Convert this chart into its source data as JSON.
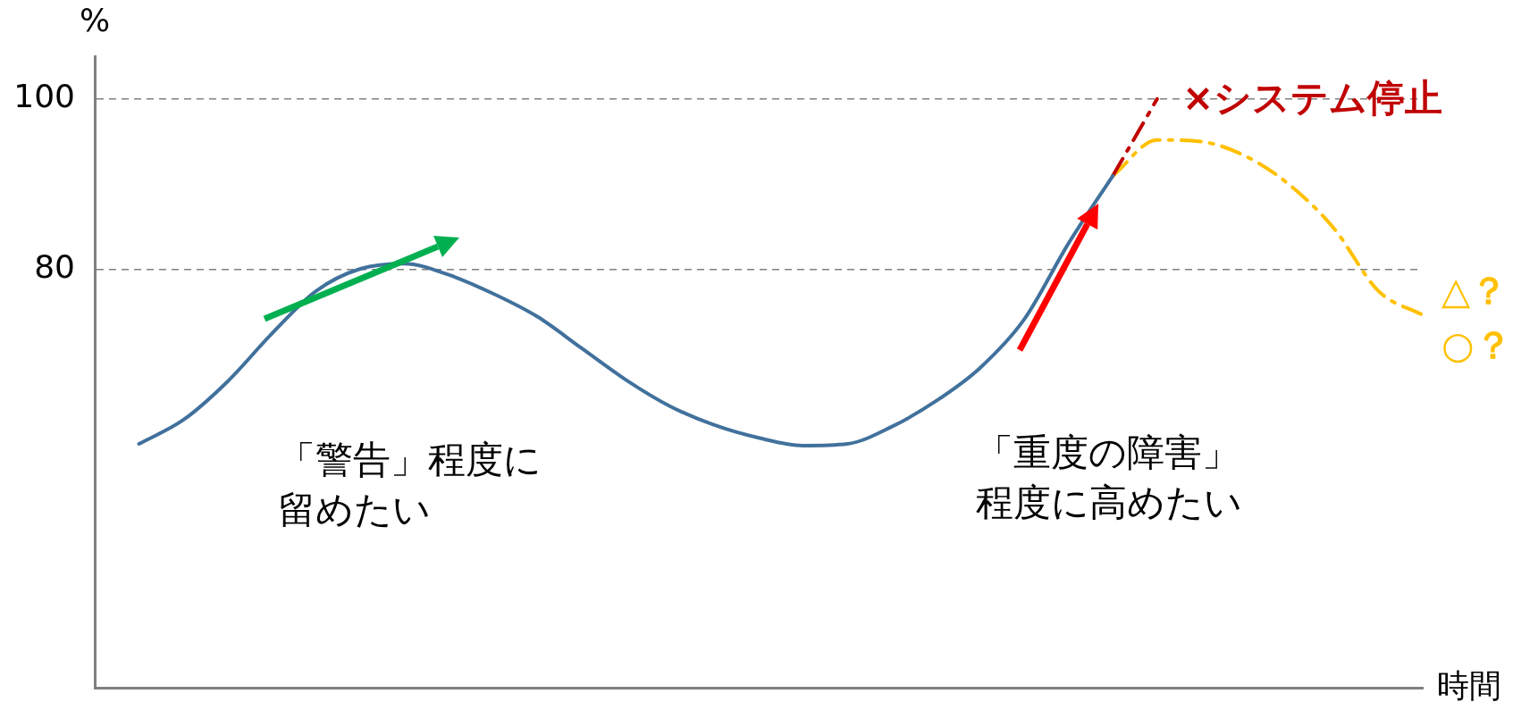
{
  "chart_data": {
    "type": "line",
    "ylabel": "%",
    "xlabel": "時間",
    "categories": [
      null,
      null,
      null,
      null,
      null,
      null,
      null,
      null,
      null,
      null,
      null,
      null,
      null,
      null,
      null,
      null,
      null,
      null,
      null,
      null,
      null,
      null,
      null,
      null,
      null,
      null,
      null,
      null,
      null,
      null,
      null
    ],
    "series": [
      {
        "color": "#41719c",
        "line_style": "solid",
        "values": [
          null,
          59.6,
          62.4,
          66.9,
          72.5,
          77.5,
          80.1,
          80.7,
          79.4,
          77.2,
          74.5,
          70.8,
          67.1,
          64.0,
          61.8,
          60.3,
          59.4,
          59.6,
          61.6,
          64.6,
          68.5,
          74.2,
          83.1,
          91,
          null,
          null,
          null,
          null,
          null,
          null,
          null
        ]
      },
      {
        "color": "#c00000",
        "line_style": "dashed",
        "values": [
          null,
          null,
          null,
          null,
          null,
          null,
          null,
          null,
          null,
          null,
          null,
          null,
          null,
          null,
          null,
          null,
          null,
          null,
          null,
          null,
          null,
          null,
          null,
          91,
          100,
          null,
          null,
          null,
          null,
          null,
          null
        ]
      },
      {
        "color": "#ffc000",
        "line_style": "dashed",
        "values": [
          null,
          null,
          null,
          null,
          null,
          null,
          null,
          null,
          null,
          null,
          null,
          null,
          null,
          null,
          null,
          null,
          null,
          null,
          null,
          null,
          null,
          null,
          null,
          91,
          95.2,
          95,
          93.3,
          89.9,
          84.8,
          77.5,
          74.7
        ]
      }
    ],
    "ylim": [
      31,
      105
    ],
    "yticks": [
      80,
      100
    ],
    "grid": "y",
    "marker": "none",
    "legend": false,
    "tick_labels": "y",
    "annotations": [
      "「警告」程度に",
      "留めたい",
      "「重度の障害」",
      "程度に高めたい",
      "×システム停止",
      "△？",
      "○？"
    ]
  }
}
